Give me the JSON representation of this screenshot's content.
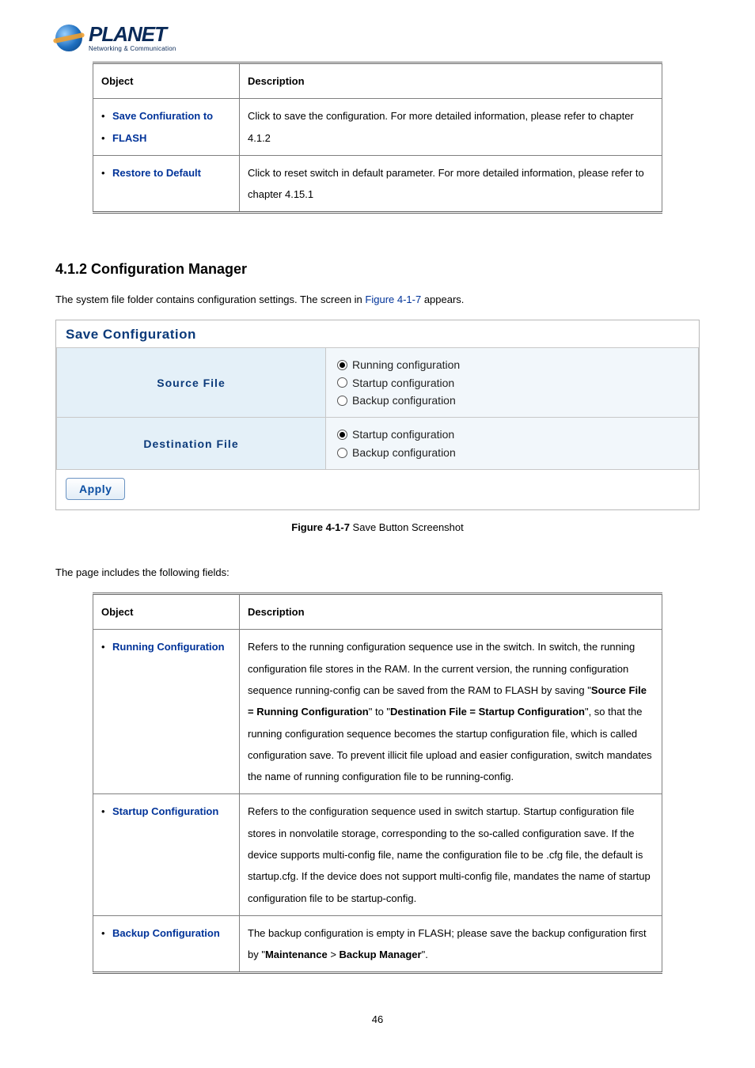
{
  "logo": {
    "brand": "PLANET",
    "tagline": "Networking & Communication"
  },
  "table1": {
    "headers": [
      "Object",
      "Description"
    ],
    "rows": [
      {
        "objects": [
          "Save Confiuration to",
          "FLASH"
        ],
        "desc": "Click to save the configuration. For more detailed information, please refer to chapter 4.1.2"
      },
      {
        "objects": [
          "Restore to Default"
        ],
        "desc": "Click to reset switch in default parameter. For more detailed information, please refer to chapter 4.15.1"
      }
    ]
  },
  "section_heading": "4.1.2 Configuration Manager",
  "intro_text_pre": "The system file folder contains configuration settings. The screen in ",
  "intro_figref": "Figure 4-1-7",
  "intro_text_post": " appears.",
  "screenshot": {
    "panel_title": "Save Configuration",
    "rows": [
      {
        "label": "Source File",
        "options": [
          {
            "label": "Running configuration",
            "selected": true
          },
          {
            "label": "Startup configuration",
            "selected": false
          },
          {
            "label": "Backup configuration",
            "selected": false
          }
        ]
      },
      {
        "label": "Destination File",
        "options": [
          {
            "label": "Startup configuration",
            "selected": true
          },
          {
            "label": "Backup configuration",
            "selected": false
          }
        ]
      }
    ],
    "apply_label": "Apply",
    "colors": {
      "title_color": "#0b3a7a",
      "label_bg": "#e4f0f8",
      "options_bg": "#f2f7fb",
      "border": "#c8c8c8",
      "button_text": "#0b4ea2",
      "button_border": "#6a93c2"
    }
  },
  "figure_caption_bold": "Figure 4-1-7",
  "figure_caption_rest": " Save Button Screenshot",
  "fields_intro": "The page includes the following fields:",
  "table2": {
    "headers": [
      "Object",
      "Description"
    ],
    "rows": [
      {
        "objects": [
          "Running Configuration"
        ],
        "desc_parts": [
          "Refers to the running configuration sequence use in the switch. In switch, the running configuration file stores in the RAM. In the current version, the running configuration sequence running-config can be saved from the RAM to FLASH by saving \"",
          {
            "bold": "Source File = Running Configuration"
          },
          "\" to \"",
          {
            "bold": "Destination File = Startup Configuration"
          },
          "\", so that the running configuration sequence becomes the startup configuration file, which is called configuration save. To prevent illicit file upload and easier configuration, switch mandates the name of running configuration file to be running-config."
        ]
      },
      {
        "objects": [
          "Startup Configuration"
        ],
        "desc_parts": [
          "Refers to the configuration sequence used in switch startup. Startup configuration file stores in nonvolatile storage, corresponding to the so-called configuration save. If the device supports multi-config file, name the configuration file to be .cfg file, the default is startup.cfg. If the device does not support multi-config file, mandates the name of startup configuration file to be startup-config."
        ]
      },
      {
        "objects": [
          "Backup Configuration"
        ],
        "desc_parts": [
          "The backup configuration is empty in FLASH; please save the backup configuration first by \"",
          {
            "bold": "Maintenance"
          },
          " > ",
          {
            "bold": "Backup Manager"
          },
          "\"."
        ]
      }
    ]
  },
  "page_number": "46"
}
